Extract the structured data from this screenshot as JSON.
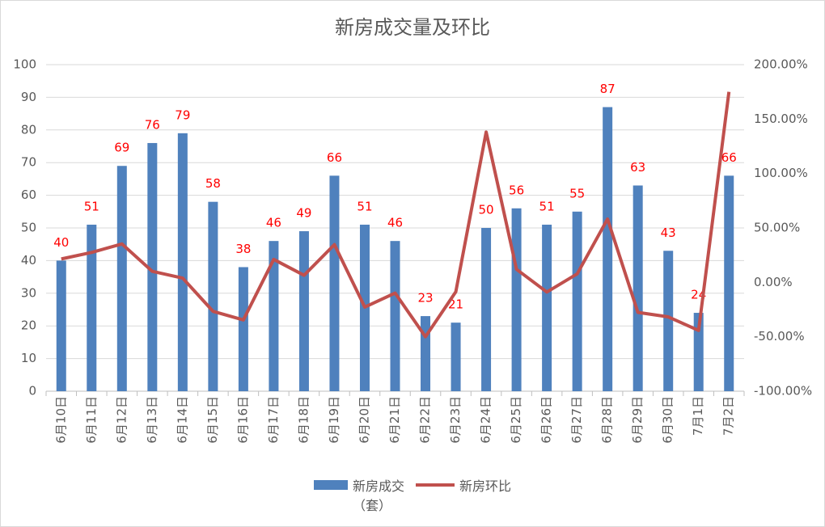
{
  "chart_data": {
    "type": "bar",
    "title": "新房成交量及环比",
    "categories": [
      "6月10日",
      "6月11日",
      "6月12日",
      "6月13日",
      "6月14日",
      "6月15日",
      "6月16日",
      "6月17日",
      "6月18日",
      "6月19日",
      "6月20日",
      "6月21日",
      "6月22日",
      "6月23日",
      "6月24日",
      "6月25日",
      "6月26日",
      "6月27日",
      "6月28日",
      "6月29日",
      "6月30日",
      "7月1日",
      "7月2日"
    ],
    "series": [
      {
        "name": "新房成交（套）",
        "type": "bar",
        "color": "#4f81bd",
        "label_color": "#ff0000",
        "values": [
          40,
          51,
          69,
          76,
          79,
          58,
          38,
          46,
          49,
          66,
          51,
          46,
          23,
          21,
          50,
          56,
          51,
          55,
          87,
          63,
          43,
          24,
          66
        ]
      },
      {
        "name": "新房环比",
        "type": "line",
        "axis": "y2",
        "color": "#c0504d",
        "values": [
          21.5,
          27.5,
          35.3,
          10.1,
          3.9,
          -26.6,
          -34.5,
          21.1,
          6.5,
          34.7,
          -22.7,
          -9.8,
          -50,
          -8.7,
          138.1,
          12,
          -8.9,
          7.8,
          58.2,
          -27.6,
          -31.7,
          -44.2,
          175
        ]
      }
    ],
    "ylim": [
      0,
      100
    ],
    "yticks": [
      0,
      10,
      20,
      30,
      40,
      50,
      60,
      70,
      80,
      90,
      100
    ],
    "y2lim": [
      -100,
      200
    ],
    "y2ticks": [
      {
        "value": -100,
        "label": "-100.00%"
      },
      {
        "value": -50,
        "label": "-50.00%"
      },
      {
        "value": 0,
        "label": "0.00%"
      },
      {
        "value": 50,
        "label": "50.00%"
      },
      {
        "value": 100,
        "label": "100.00%"
      },
      {
        "value": 150,
        "label": "150.00%"
      },
      {
        "value": 200,
        "label": "200.00%"
      }
    ],
    "grid": true,
    "legend": "bottom"
  }
}
